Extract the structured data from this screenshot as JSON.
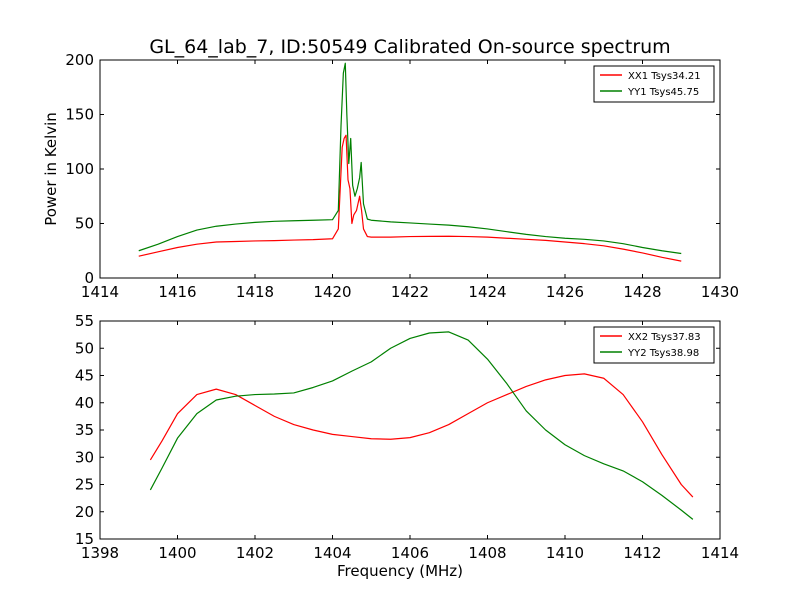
{
  "figure": {
    "title": "GL_64_lab_7, ID:50549 Calibrated On-source spectrum"
  },
  "chart_data": [
    {
      "type": "line",
      "ylabel": "Power in Kelvin",
      "xlabel": "",
      "xlim": [
        1414,
        1430
      ],
      "ylim": [
        0,
        200
      ],
      "xticks": [
        "1414",
        "1416",
        "1418",
        "1420",
        "1422",
        "1424",
        "1426",
        "1428",
        "1430"
      ],
      "yticks": [
        "0",
        "50",
        "100",
        "150",
        "200"
      ],
      "grid": false,
      "legend_position": "top-right",
      "series": [
        {
          "name": "XX1 Tsys34.21",
          "color": "#ff0000",
          "x": [
            1415.0,
            1415.5,
            1416.0,
            1416.5,
            1417.0,
            1417.5,
            1418.0,
            1418.5,
            1419.0,
            1419.5,
            1420.0,
            1420.15,
            1420.25,
            1420.3,
            1420.35,
            1420.4,
            1420.45,
            1420.5,
            1420.55,
            1420.62,
            1420.7,
            1420.75,
            1420.8,
            1420.9,
            1421.0,
            1421.5,
            1422.0,
            1422.5,
            1423.0,
            1423.5,
            1424.0,
            1424.5,
            1425.0,
            1425.5,
            1426.0,
            1426.5,
            1427.0,
            1427.5,
            1428.0,
            1428.5,
            1429.0
          ],
          "y": [
            20,
            24,
            28,
            31,
            33,
            33.5,
            34,
            34.3,
            34.8,
            35.2,
            36,
            45,
            120,
            128,
            131,
            90,
            82,
            50,
            58,
            62,
            75,
            62,
            45,
            38,
            37.5,
            37.5,
            38,
            38.2,
            38.3,
            38,
            37.5,
            36.5,
            35.5,
            34.5,
            33,
            31.5,
            29.5,
            26.5,
            23,
            19,
            15.5
          ]
        },
        {
          "name": "YY1 Tsys45.75",
          "color": "#008000",
          "x": [
            1415.0,
            1415.5,
            1416.0,
            1416.5,
            1417.0,
            1417.5,
            1418.0,
            1418.5,
            1419.0,
            1419.5,
            1420.0,
            1420.15,
            1420.22,
            1420.28,
            1420.33,
            1420.37,
            1420.42,
            1420.47,
            1420.52,
            1420.58,
            1420.64,
            1420.7,
            1420.74,
            1420.8,
            1420.9,
            1421.0,
            1421.5,
            1422.0,
            1422.5,
            1423.0,
            1423.5,
            1424.0,
            1424.5,
            1425.0,
            1425.5,
            1426.0,
            1426.5,
            1427.0,
            1427.5,
            1428.0,
            1428.5,
            1429.0
          ],
          "y": [
            25,
            31,
            38,
            44,
            47.5,
            49.5,
            51,
            52,
            52.5,
            53,
            53.5,
            62,
            140,
            188,
            197,
            150,
            105,
            128,
            85,
            75,
            82,
            92,
            106,
            68,
            54,
            53,
            51.5,
            50.5,
            49.5,
            48.5,
            47,
            45,
            42.5,
            40,
            38,
            36.5,
            35.5,
            34,
            31.5,
            28,
            25,
            22.5
          ]
        }
      ]
    },
    {
      "type": "line",
      "ylabel": "",
      "xlabel": "Frequency (MHz)",
      "xlim": [
        1398,
        1414
      ],
      "ylim": [
        15,
        55
      ],
      "xticks": [
        "1398",
        "1400",
        "1402",
        "1404",
        "1406",
        "1408",
        "1410",
        "1412",
        "1414"
      ],
      "yticks": [
        "15",
        "20",
        "25",
        "30",
        "35",
        "40",
        "45",
        "50",
        "55"
      ],
      "grid": false,
      "legend_position": "top-right",
      "series": [
        {
          "name": "XX2 Tsys37.83",
          "color": "#ff0000",
          "x": [
            1399.3,
            1399.6,
            1400.0,
            1400.5,
            1401.0,
            1401.5,
            1402.0,
            1402.5,
            1403.0,
            1403.5,
            1404.0,
            1404.5,
            1405.0,
            1405.5,
            1406.0,
            1406.5,
            1407.0,
            1407.5,
            1408.0,
            1408.5,
            1409.0,
            1409.5,
            1410.0,
            1410.5,
            1411.0,
            1411.5,
            1412.0,
            1412.5,
            1413.0,
            1413.3
          ],
          "y": [
            29.5,
            33,
            38,
            41.5,
            42.5,
            41.5,
            39.5,
            37.5,
            36,
            35,
            34.2,
            33.8,
            33.4,
            33.3,
            33.6,
            34.5,
            36,
            38,
            40,
            41.5,
            43,
            44.2,
            45,
            45.3,
            44.5,
            41.5,
            36.5,
            30.5,
            25,
            22.7
          ]
        },
        {
          "name": "YY2 Tsys38.98",
          "color": "#008000",
          "x": [
            1399.3,
            1399.6,
            1400.0,
            1400.5,
            1401.0,
            1401.5,
            1402.0,
            1402.5,
            1403.0,
            1403.5,
            1404.0,
            1404.5,
            1405.0,
            1405.5,
            1406.0,
            1406.5,
            1407.0,
            1407.5,
            1408.0,
            1408.5,
            1409.0,
            1409.5,
            1410.0,
            1410.5,
            1411.0,
            1411.5,
            1412.0,
            1412.5,
            1413.0,
            1413.3
          ],
          "y": [
            24,
            28,
            33.5,
            38,
            40.5,
            41.2,
            41.5,
            41.6,
            41.8,
            42.8,
            44,
            45.8,
            47.5,
            50,
            51.8,
            52.8,
            53,
            51.5,
            48,
            43.5,
            38.5,
            35,
            32.3,
            30.3,
            28.8,
            27.5,
            25.5,
            23,
            20.3,
            18.6
          ]
        }
      ]
    }
  ]
}
